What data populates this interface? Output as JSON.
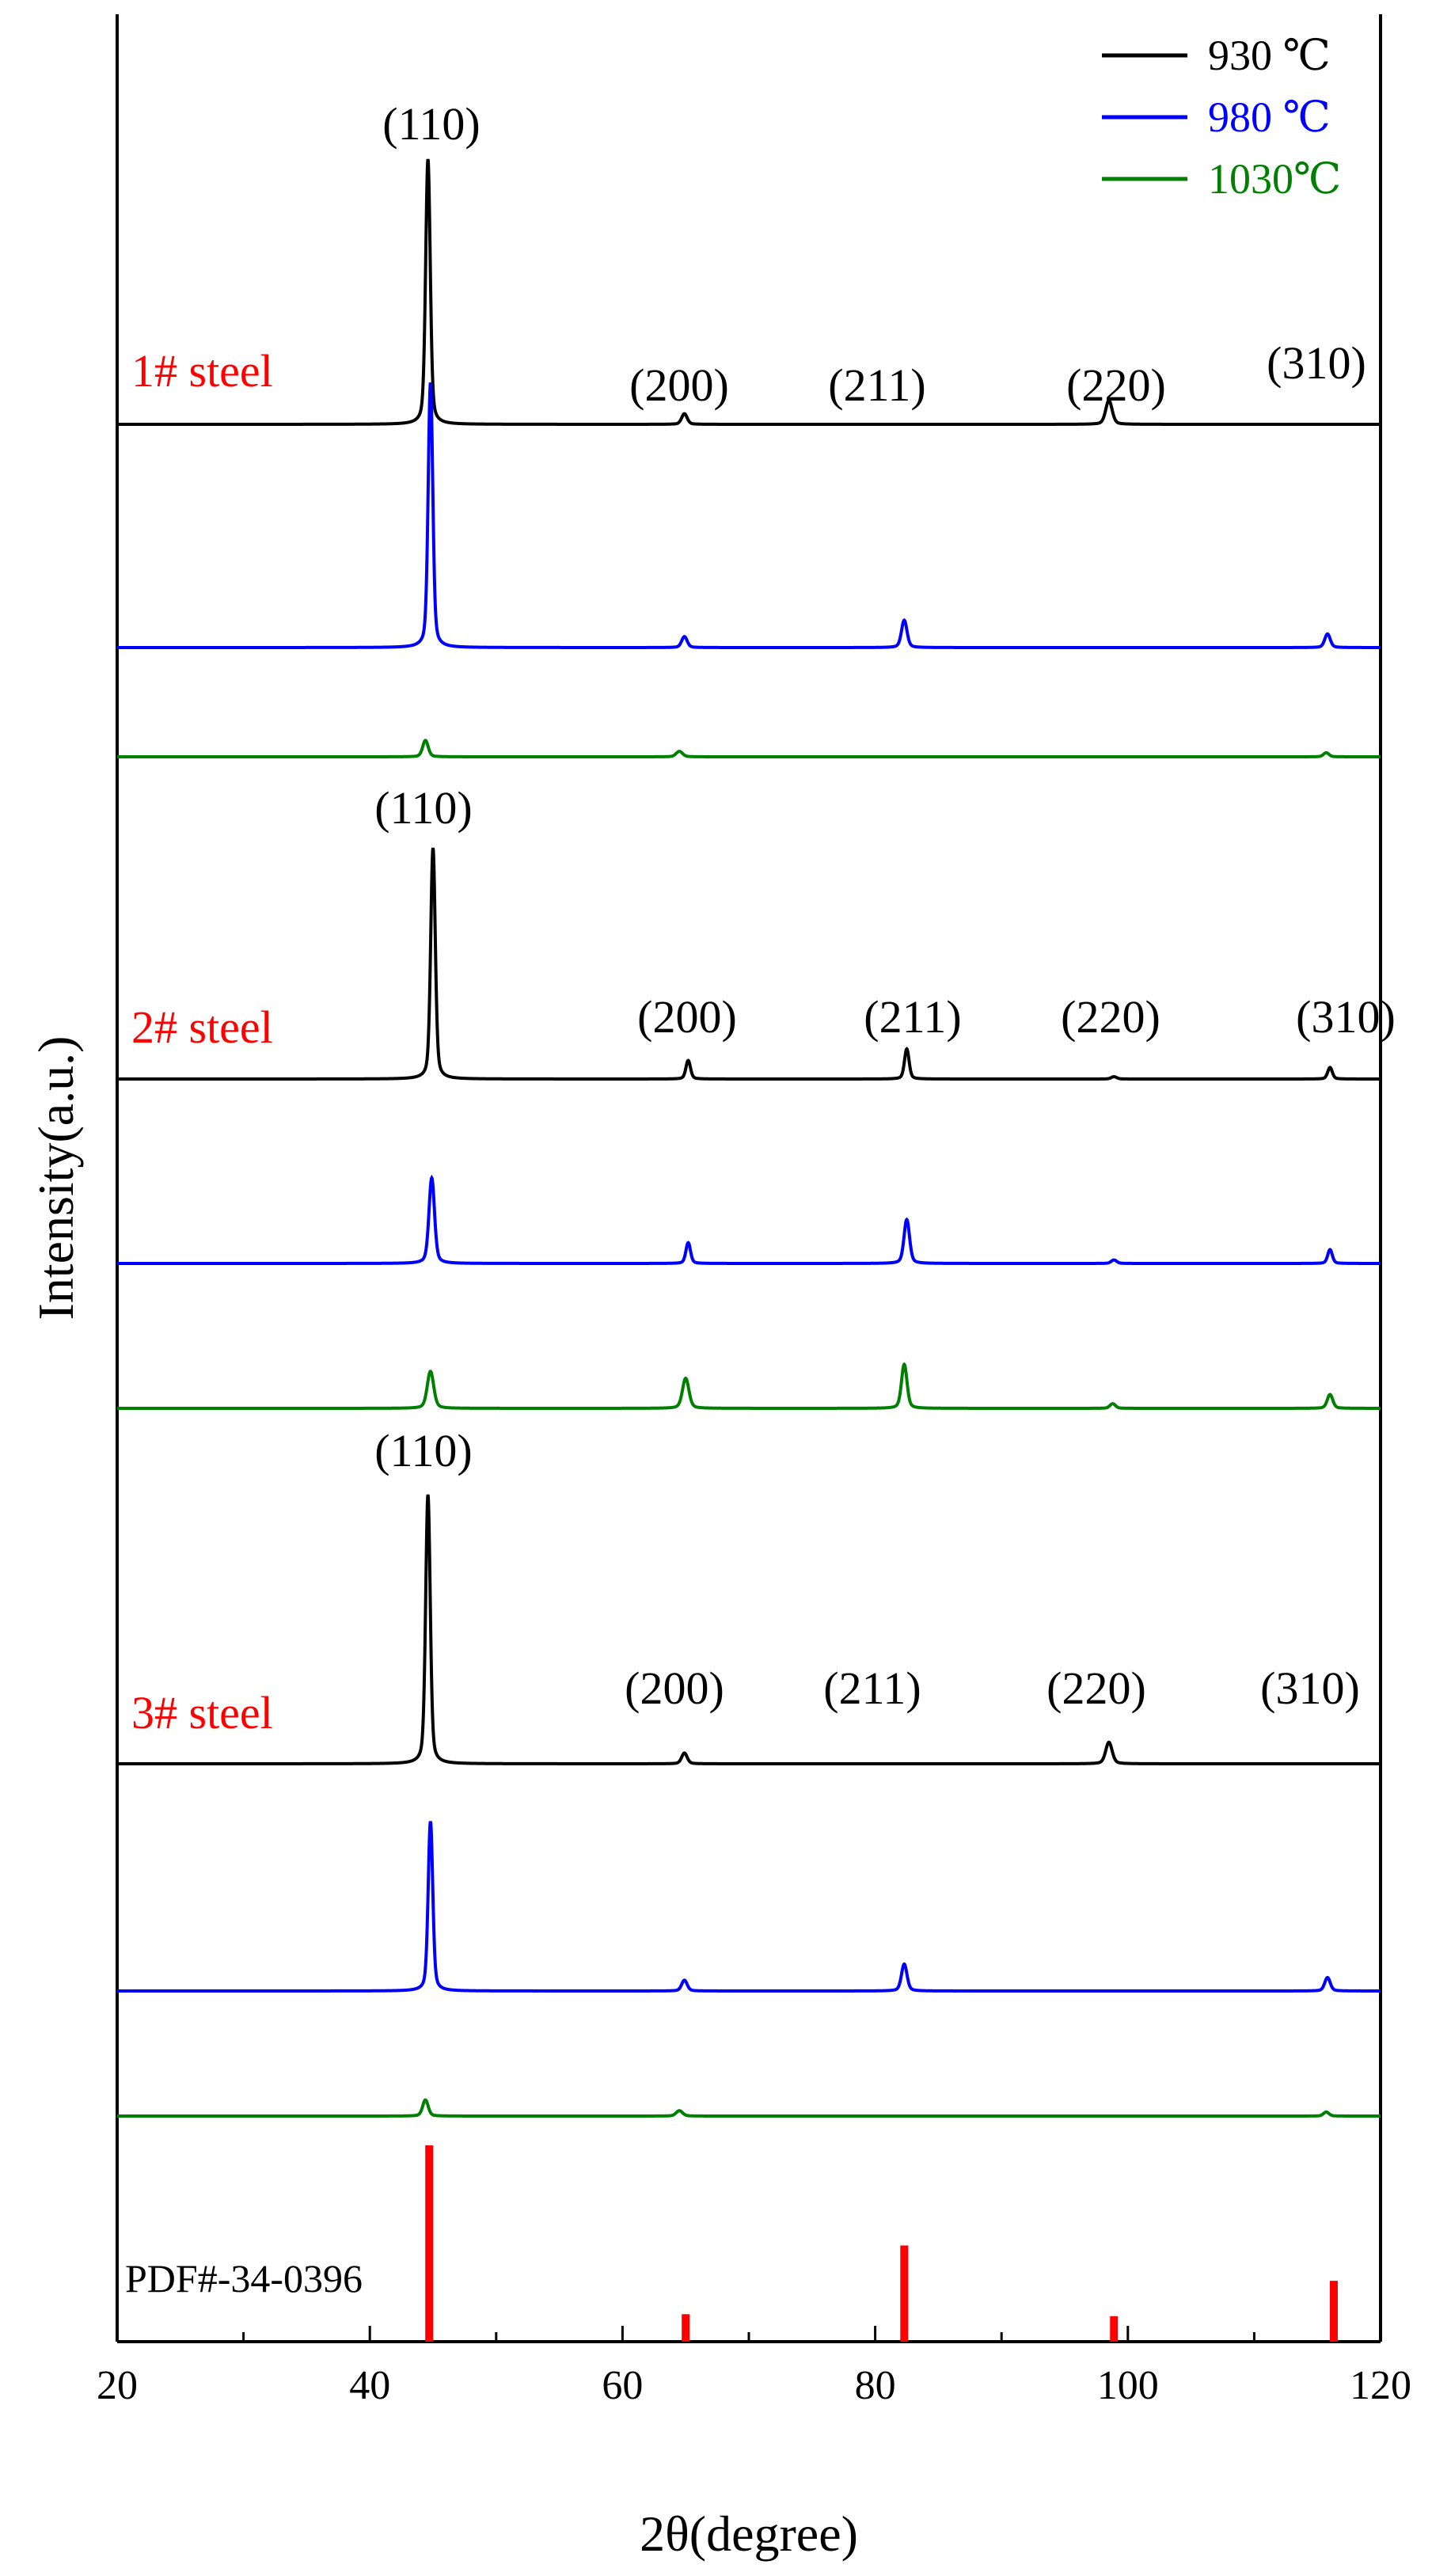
{
  "chart_data": {
    "type": "line",
    "xlabel": "2θ(degree)",
    "ylabel": "Intensity(a.u.)",
    "xlim": [
      20,
      120
    ],
    "xticks": [
      20,
      40,
      60,
      80,
      100,
      120
    ],
    "grid": false,
    "legend": {
      "placement": "top-right",
      "entries": [
        {
          "name": "930 ℃",
          "color": "#000000"
        },
        {
          "name": "980 ℃",
          "color": "#0000ff"
        },
        {
          "name": "1030℃",
          "color": "#008000"
        }
      ]
    },
    "panels": [
      {
        "label": "1# steel",
        "label_color": "#ff0000",
        "peak_labels": [
          "(110)",
          "(200)",
          "(211)",
          "(220)",
          "(310)"
        ],
        "series": [
          {
            "name": "930 ℃",
            "color": "#000000",
            "peaks": [
              {
                "x": 44.6,
                "h": 1.0,
                "w": 0.25
              },
              {
                "x": 64.9,
                "h": 0.04,
                "w": 0.3
              },
              {
                "x": 98.5,
                "h": 0.09,
                "w": 0.35
              }
            ]
          },
          {
            "name": "980 ℃",
            "color": "#0000ff",
            "peaks": [
              {
                "x": 44.8,
                "h": 0.97,
                "w": 0.25
              },
              {
                "x": 64.9,
                "h": 0.04,
                "w": 0.3
              },
              {
                "x": 82.3,
                "h": 0.1,
                "w": 0.3
              },
              {
                "x": 115.8,
                "h": 0.05,
                "w": 0.3
              }
            ]
          },
          {
            "name": "1030℃",
            "color": "#008000",
            "peaks": [
              {
                "x": 44.4,
                "h": 0.06,
                "w": 0.3
              },
              {
                "x": 64.5,
                "h": 0.02,
                "w": 0.35
              },
              {
                "x": 115.7,
                "h": 0.015,
                "w": 0.3
              }
            ]
          }
        ]
      },
      {
        "label": "2# steel",
        "label_color": "#ff0000",
        "peak_labels": [
          "(110)",
          "(200)",
          "(211)",
          "(220)",
          "(310)"
        ],
        "series": [
          {
            "name": "930 ℃",
            "color": "#000000",
            "peaks": [
              {
                "x": 45.0,
                "h": 1.0,
                "w": 0.25
              },
              {
                "x": 65.2,
                "h": 0.08,
                "w": 0.25
              },
              {
                "x": 82.5,
                "h": 0.13,
                "w": 0.25
              },
              {
                "x": 98.9,
                "h": 0.01,
                "w": 0.3
              },
              {
                "x": 116.0,
                "h": 0.05,
                "w": 0.25
              }
            ]
          },
          {
            "name": "980 ℃",
            "color": "#0000ff",
            "peaks": [
              {
                "x": 44.9,
                "h": 0.37,
                "w": 0.3
              },
              {
                "x": 65.2,
                "h": 0.09,
                "w": 0.25
              },
              {
                "x": 82.5,
                "h": 0.19,
                "w": 0.3
              },
              {
                "x": 98.9,
                "h": 0.015,
                "w": 0.3
              },
              {
                "x": 116.0,
                "h": 0.06,
                "w": 0.25
              }
            ]
          },
          {
            "name": "1030℃",
            "color": "#008000",
            "peaks": [
              {
                "x": 44.8,
                "h": 0.16,
                "w": 0.35
              },
              {
                "x": 65.0,
                "h": 0.13,
                "w": 0.35
              },
              {
                "x": 82.3,
                "h": 0.19,
                "w": 0.3
              },
              {
                "x": 98.8,
                "h": 0.02,
                "w": 0.3
              },
              {
                "x": 116.0,
                "h": 0.06,
                "w": 0.3
              }
            ]
          }
        ]
      },
      {
        "label": "3# steel",
        "label_color": "#ff0000",
        "peak_labels": [
          "(110)",
          "(200)",
          "(211)",
          "(220)",
          "(310)"
        ],
        "series": [
          {
            "name": "930 ℃",
            "color": "#000000",
            "peaks": [
              {
                "x": 44.6,
                "h": 1.0,
                "w": 0.25
              },
              {
                "x": 64.9,
                "h": 0.04,
                "w": 0.3
              },
              {
                "x": 98.5,
                "h": 0.08,
                "w": 0.35
              }
            ]
          },
          {
            "name": "980 ℃",
            "color": "#0000ff",
            "peaks": [
              {
                "x": 44.8,
                "h": 0.63,
                "w": 0.25
              },
              {
                "x": 64.9,
                "h": 0.04,
                "w": 0.3
              },
              {
                "x": 82.3,
                "h": 0.1,
                "w": 0.3
              },
              {
                "x": 115.8,
                "h": 0.05,
                "w": 0.3
              }
            ]
          },
          {
            "name": "1030℃",
            "color": "#008000",
            "peaks": [
              {
                "x": 44.4,
                "h": 0.06,
                "w": 0.3
              },
              {
                "x": 64.5,
                "h": 0.02,
                "w": 0.35
              },
              {
                "x": 115.7,
                "h": 0.015,
                "w": 0.3
              }
            ]
          }
        ]
      }
    ],
    "reference": {
      "label": "PDF#-34-0396",
      "color": "#ff0000",
      "lines": [
        {
          "x": 44.7,
          "intensity": 100
        },
        {
          "x": 65.0,
          "intensity": 14
        },
        {
          "x": 82.3,
          "intensity": 49
        },
        {
          "x": 98.9,
          "intensity": 13
        },
        {
          "x": 116.3,
          "intensity": 31
        }
      ]
    }
  }
}
